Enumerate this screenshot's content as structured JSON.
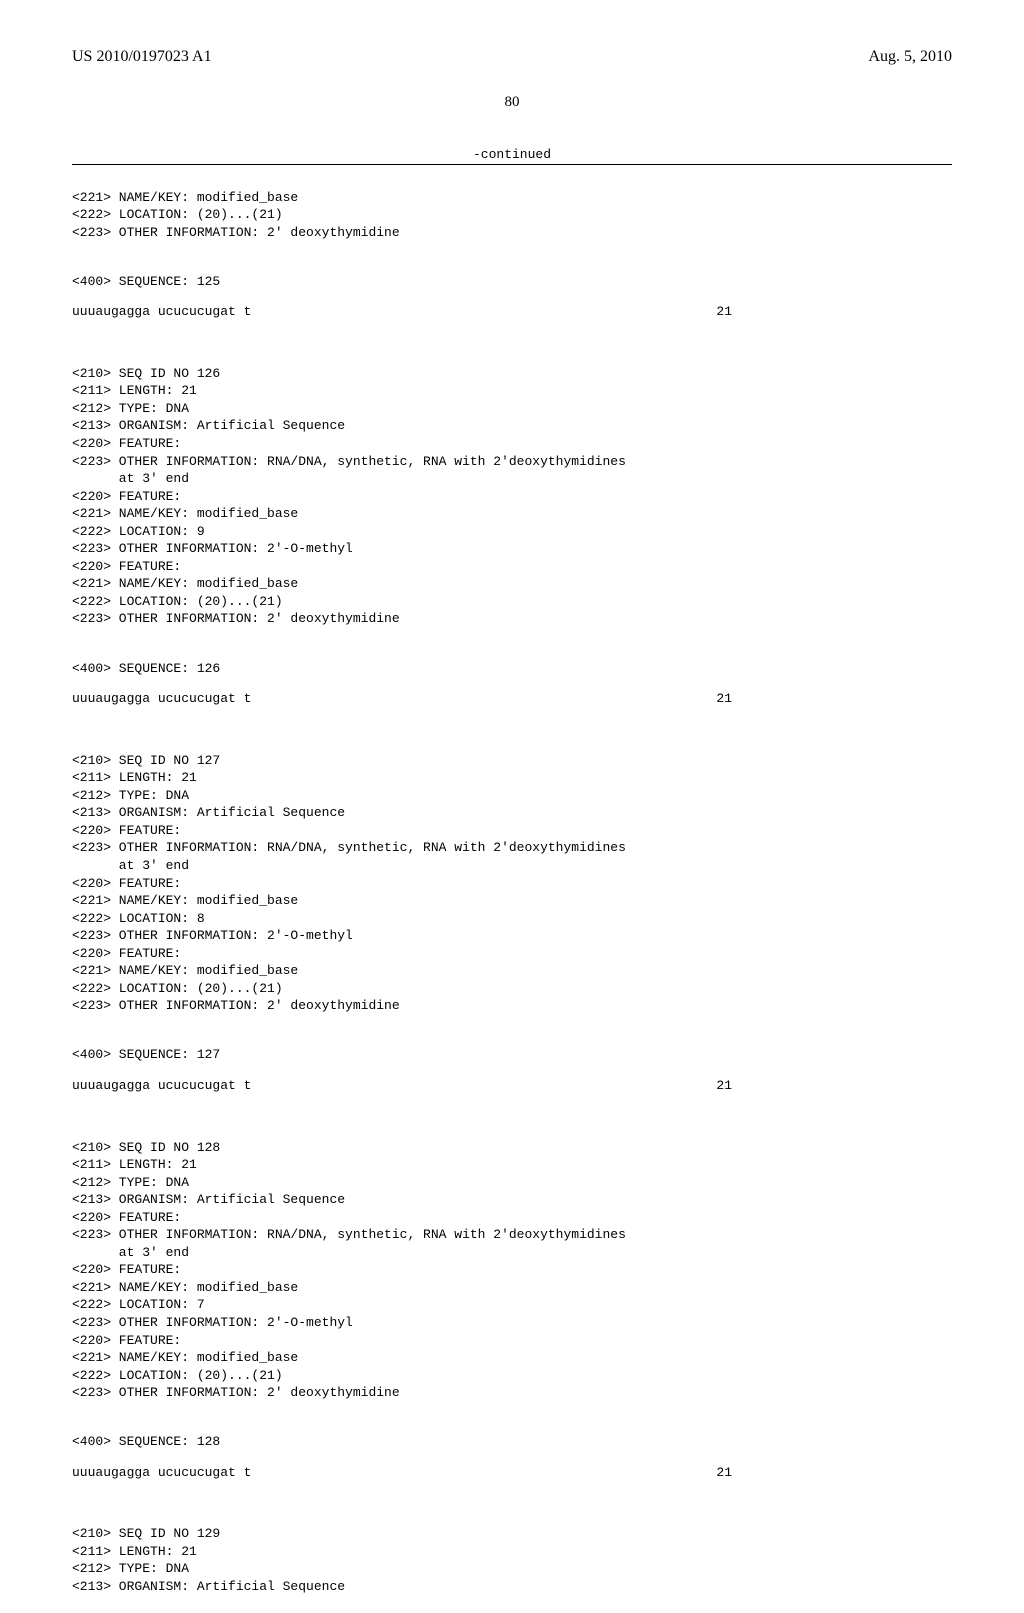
{
  "header": {
    "pub_number": "US 2010/0197023 A1",
    "pub_date": "Aug. 5, 2010"
  },
  "page_number": "80",
  "continued_label": "-continued",
  "tail125": {
    "l1": "<221> NAME/KEY: modified_base",
    "l2": "<222> LOCATION: (20)...(21)",
    "l3": "<223> OTHER INFORMATION: 2' deoxythymidine",
    "seq_label": "<400> SEQUENCE: 125",
    "seq": "uuuaugagga ucucucugat t",
    "seqnum": "21"
  },
  "entry126": {
    "l1": "<210> SEQ ID NO 126",
    "l2": "<211> LENGTH: 21",
    "l3": "<212> TYPE: DNA",
    "l4": "<213> ORGANISM: Artificial Sequence",
    "l5": "<220> FEATURE:",
    "l6": "<223> OTHER INFORMATION: RNA/DNA, synthetic, RNA with 2'deoxythymidines",
    "l6b": "      at 3' end",
    "l7": "<220> FEATURE:",
    "l8": "<221> NAME/KEY: modified_base",
    "l9": "<222> LOCATION: 9",
    "l10": "<223> OTHER INFORMATION: 2'-O-methyl",
    "l11": "<220> FEATURE:",
    "l12": "<221> NAME/KEY: modified_base",
    "l13": "<222> LOCATION: (20)...(21)",
    "l14": "<223> OTHER INFORMATION: 2' deoxythymidine",
    "seq_label": "<400> SEQUENCE: 126",
    "seq": "uuuaugagga ucucucugat t",
    "seqnum": "21"
  },
  "entry127": {
    "l1": "<210> SEQ ID NO 127",
    "l2": "<211> LENGTH: 21",
    "l3": "<212> TYPE: DNA",
    "l4": "<213> ORGANISM: Artificial Sequence",
    "l5": "<220> FEATURE:",
    "l6": "<223> OTHER INFORMATION: RNA/DNA, synthetic, RNA with 2'deoxythymidines",
    "l6b": "      at 3' end",
    "l7": "<220> FEATURE:",
    "l8": "<221> NAME/KEY: modified_base",
    "l9": "<222> LOCATION: 8",
    "l10": "<223> OTHER INFORMATION: 2'-O-methyl",
    "l11": "<220> FEATURE:",
    "l12": "<221> NAME/KEY: modified_base",
    "l13": "<222> LOCATION: (20)...(21)",
    "l14": "<223> OTHER INFORMATION: 2' deoxythymidine",
    "seq_label": "<400> SEQUENCE: 127",
    "seq": "uuuaugagga ucucucugat t",
    "seqnum": "21"
  },
  "entry128": {
    "l1": "<210> SEQ ID NO 128",
    "l2": "<211> LENGTH: 21",
    "l3": "<212> TYPE: DNA",
    "l4": "<213> ORGANISM: Artificial Sequence",
    "l5": "<220> FEATURE:",
    "l6": "<223> OTHER INFORMATION: RNA/DNA, synthetic, RNA with 2'deoxythymidines",
    "l6b": "      at 3' end",
    "l7": "<220> FEATURE:",
    "l8": "<221> NAME/KEY: modified_base",
    "l9": "<222> LOCATION: 7",
    "l10": "<223> OTHER INFORMATION: 2'-O-methyl",
    "l11": "<220> FEATURE:",
    "l12": "<221> NAME/KEY: modified_base",
    "l13": "<222> LOCATION: (20)...(21)",
    "l14": "<223> OTHER INFORMATION: 2' deoxythymidine",
    "seq_label": "<400> SEQUENCE: 128",
    "seq": "uuuaugagga ucucucugat t",
    "seqnum": "21"
  },
  "entry129": {
    "l1": "<210> SEQ ID NO 129",
    "l2": "<211> LENGTH: 21",
    "l3": "<212> TYPE: DNA",
    "l4": "<213> ORGANISM: Artificial Sequence"
  }
}
